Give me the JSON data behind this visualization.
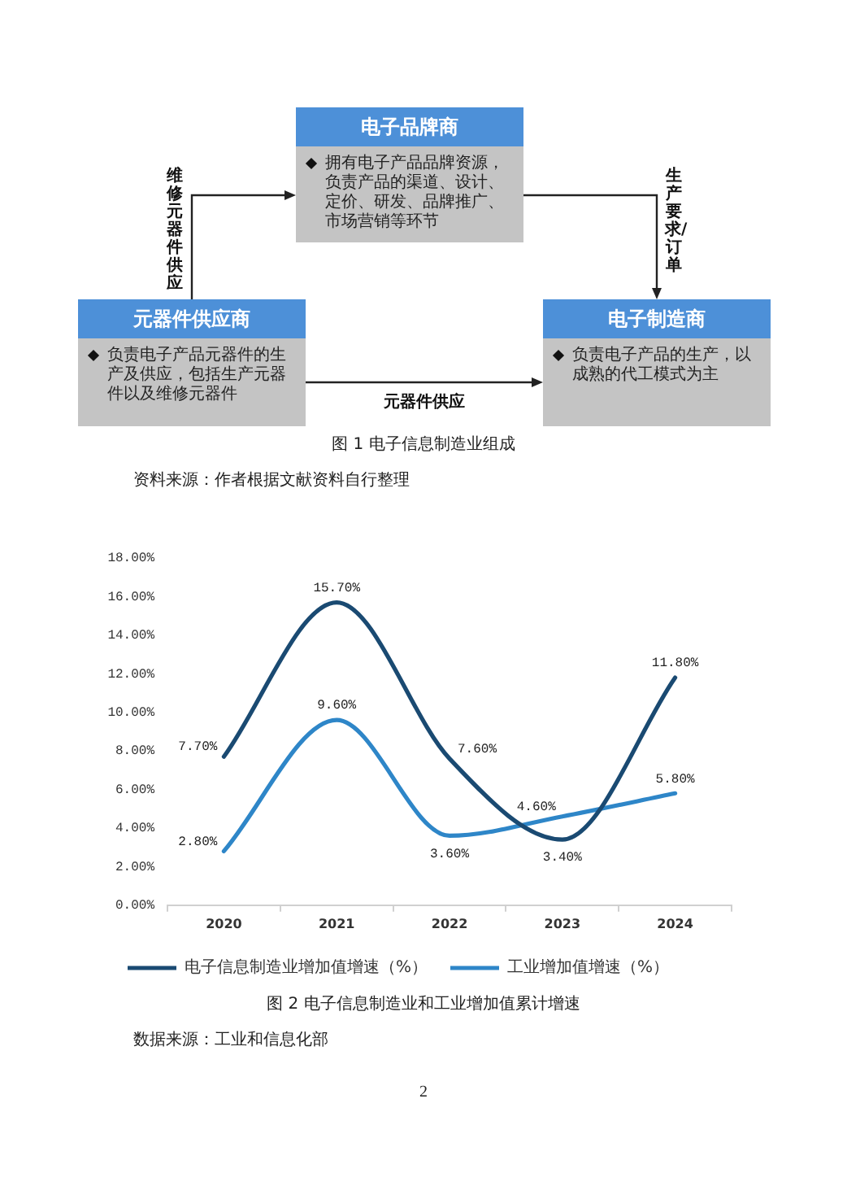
{
  "chart_data": [
    {
      "type": "other",
      "title": "图 1 电子信息制造业组成",
      "categories": [
        "电子品牌商",
        "元器件供应商",
        "电子制造商"
      ],
      "annotations": [
        "拥有电子产品品牌资源，负责产品的渠道、设计、定价、研发、品牌推广、市场营销等环节",
        "负责电子产品元器件的生产及供应，包括生产元器件以及维修元器件",
        "负责电子产品的生产，以成熟的代工模式为主",
        "维修元器件供应",
        "生产要求/订单",
        "元器件供应",
        "资料来源：作者根据文献资料自行整理"
      ]
    },
    {
      "type": "line",
      "title": "图 2 电子信息制造业和工业增加值累计增速",
      "categories": [
        "2020",
        "2021",
        "2022",
        "2023",
        "2024"
      ],
      "series": [
        {
          "name": "电子信息制造业增加值增速（%）",
          "color": "#1a4a72",
          "values": [
            7.7,
            15.7,
            7.6,
            3.4,
            11.8
          ],
          "value_labels": [
            "7.70%",
            "15.70%",
            "7.60%",
            "3.40%",
            "11.80%"
          ]
        },
        {
          "name": "工业增加值增速（%）",
          "color": "#2e86c8",
          "values": [
            2.8,
            9.6,
            3.6,
            4.6,
            5.8
          ],
          "value_labels": [
            "2.80%",
            "9.60%",
            "3.60%",
            "4.60%",
            "5.80%"
          ]
        }
      ],
      "ylim": [
        0,
        18
      ],
      "yticks": [
        {
          "value": 0,
          "label": "0.00%"
        },
        {
          "value": 2,
          "label": "2.00%"
        },
        {
          "value": 4,
          "label": "4.00%"
        },
        {
          "value": 6,
          "label": "6.00%"
        },
        {
          "value": 8,
          "label": "8.00%"
        },
        {
          "value": 10,
          "label": "10.00%"
        },
        {
          "value": 12,
          "label": "12.00%"
        },
        {
          "value": 14,
          "label": "14.00%"
        },
        {
          "value": 16,
          "label": "16.00%"
        },
        {
          "value": 18,
          "label": "18.00%"
        }
      ],
      "grid": false,
      "legend": "bottom",
      "marker": "none",
      "line_style": "solid",
      "annotations": [
        "数据来源：工业和信息化部",
        "2"
      ]
    }
  ]
}
